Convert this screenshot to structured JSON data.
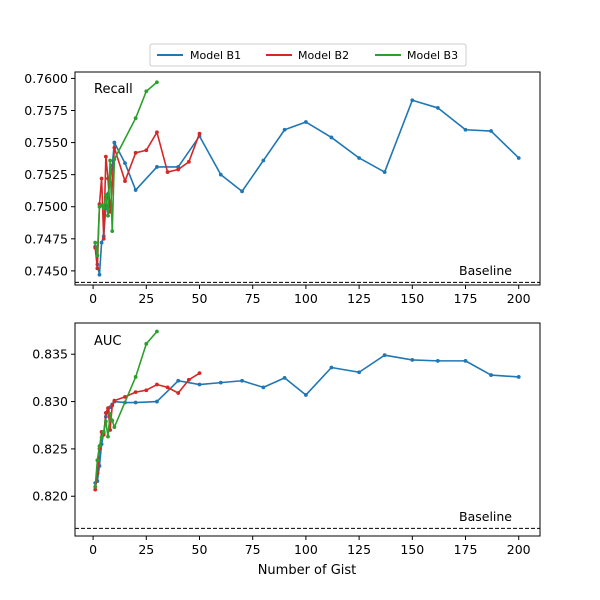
{
  "chart_data": {
    "type": "line",
    "xlabel": "Number of Gist",
    "legend": {
      "placement": "top-center",
      "entries": [
        "Model B1",
        "Model B2",
        "Model B3"
      ]
    },
    "series_colors": {
      "Model B1": "#1f77b4",
      "Model B2": "#d62728",
      "Model B3": "#2ca02c"
    },
    "x_ticks": [
      0,
      25,
      50,
      75,
      100,
      125,
      150,
      175,
      200
    ],
    "xlim": [
      -8.5,
      210
    ],
    "panels": [
      {
        "label": "Recall",
        "baseline": {
          "label": "Baseline",
          "value": 0.7441,
          "style": "dashed"
        },
        "ylim": [
          0.7439,
          0.7605
        ],
        "y_ticks": [
          0.745,
          0.7475,
          0.75,
          0.7525,
          0.755,
          0.7575,
          0.76
        ],
        "y_tick_labels": [
          "0.7450",
          "0.7475",
          "0.7500",
          "0.7525",
          "0.7550",
          "0.7575",
          "0.7600"
        ],
        "series": [
          {
            "name": "Model B1",
            "x": [
              1,
              2,
              3,
              4,
              5,
              6,
              7,
              8,
              9,
              10,
              15,
              20,
              30,
              40,
              50,
              60,
              70,
              80,
              90,
              100,
              112,
              125,
              137,
              150,
              162,
              175,
              187,
              200
            ],
            "y": [
              0.7469,
              0.7455,
              0.7447,
              0.7472,
              0.7477,
              0.75,
              0.751,
              0.7519,
              0.7532,
              0.755,
              0.7534,
              0.7513,
              0.7531,
              0.7531,
              0.7555,
              0.7525,
              0.7512,
              0.7536,
              0.756,
              0.7566,
              0.7554,
              0.7538,
              0.7527,
              0.7583,
              0.7577,
              0.756,
              0.7559,
              0.7538
            ]
          },
          {
            "name": "Model B2",
            "x": [
              1,
              2,
              3,
              4,
              5,
              6,
              7,
              8,
              9,
              10,
              15,
              20,
              25,
              30,
              35,
              40,
              45,
              50
            ],
            "y": [
              0.7468,
              0.7452,
              0.7502,
              0.7522,
              0.7475,
              0.7539,
              0.7522,
              0.7496,
              0.7517,
              0.7546,
              0.752,
              0.7542,
              0.7544,
              0.7558,
              0.7527,
              0.7529,
              0.7535,
              0.7557
            ]
          },
          {
            "name": "Model B3",
            "x": [
              1,
              2,
              3,
              4,
              5,
              6,
              7,
              8,
              9,
              10,
              20,
              25,
              30
            ],
            "y": [
              0.7472,
              0.7462,
              0.75,
              0.7501,
              0.7499,
              0.7509,
              0.7493,
              0.7536,
              0.7481,
              0.7537,
              0.7569,
              0.759,
              0.7597
            ]
          }
        ]
      },
      {
        "label": "AUC",
        "baseline": {
          "label": "Baseline",
          "value": 0.8166,
          "style": "dashed"
        },
        "ylim": [
          0.8158,
          0.8383
        ],
        "y_ticks": [
          0.82,
          0.825,
          0.83,
          0.835
        ],
        "y_tick_labels": [
          "0.820",
          "0.825",
          "0.830",
          "0.835"
        ],
        "series": [
          {
            "name": "Model B1",
            "x": [
              1,
              2,
              3,
              4,
              5,
              6,
              7,
              8,
              9,
              10,
              15,
              20,
              30,
              40,
              50,
              60,
              70,
              80,
              90,
              100,
              112,
              125,
              137,
              150,
              162,
              175,
              187,
              200
            ],
            "y": [
              0.8214,
              0.8216,
              0.8232,
              0.8255,
              0.8267,
              0.8284,
              0.829,
              0.8294,
              0.8297,
              0.83,
              0.8299,
              0.8299,
              0.83,
              0.8322,
              0.8318,
              0.832,
              0.8322,
              0.8315,
              0.8325,
              0.8307,
              0.8336,
              0.8331,
              0.8349,
              0.8344,
              0.8343,
              0.8343,
              0.8328,
              0.8326
            ]
          },
          {
            "name": "Model B2",
            "x": [
              1,
              2,
              3,
              4,
              5,
              6,
              7,
              8,
              9,
              10,
              15,
              20,
              25,
              30,
              35,
              40,
              45,
              50
            ],
            "y": [
              0.8207,
              0.8224,
              0.825,
              0.8268,
              0.8265,
              0.8288,
              0.8293,
              0.827,
              0.8296,
              0.8301,
              0.8305,
              0.831,
              0.8312,
              0.8318,
              0.8315,
              0.8309,
              0.8323,
              0.833
            ]
          },
          {
            "name": "Model B3",
            "x": [
              1,
              2,
              3,
              4,
              5,
              6,
              7,
              8,
              9,
              10,
              20,
              25,
              30
            ],
            "y": [
              0.821,
              0.8238,
              0.8253,
              0.8262,
              0.8268,
              0.8279,
              0.8263,
              0.8287,
              0.828,
              0.8273,
              0.8326,
              0.8361,
              0.8374
            ]
          }
        ]
      }
    ]
  }
}
